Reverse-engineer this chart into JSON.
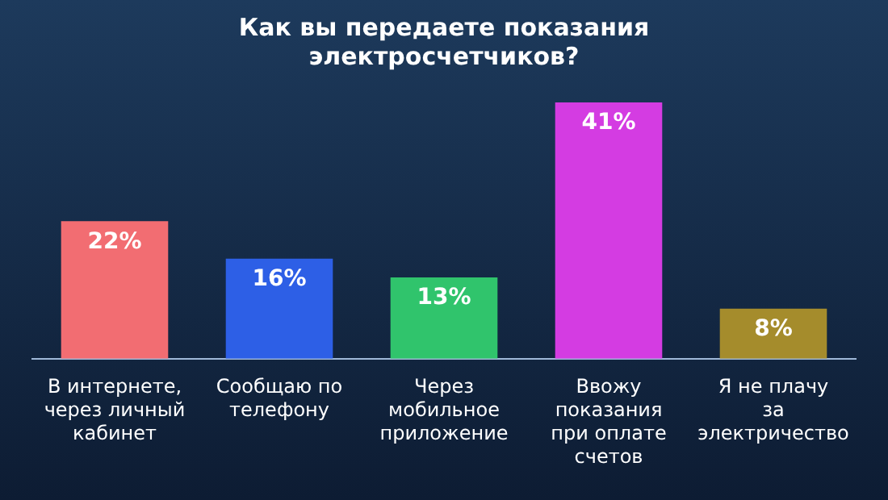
{
  "chart_data": {
    "type": "bar",
    "title": "Как вы передаете показания электросчетчиков?",
    "categories": [
      "В интернете, через личный кабинет",
      "Сообщаю по телефону",
      "Через мобильное приложение",
      "Ввожу показания при оплате счетов",
      "Я не плачу за электричество"
    ],
    "values": [
      22,
      16,
      13,
      41,
      8
    ],
    "colors": [
      "#f26d72",
      "#2d5fe6",
      "#30c46c",
      "#d43ce2",
      "#a58c2c"
    ],
    "value_labels": [
      "22%",
      "16%",
      "13%",
      "41%",
      "8%"
    ],
    "grid": false,
    "legend": false
  }
}
